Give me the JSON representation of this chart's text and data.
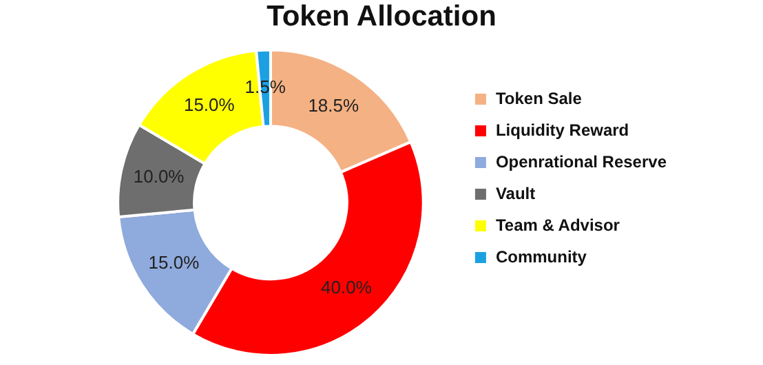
{
  "chart_data": {
    "type": "donut",
    "title": "Token Allocation",
    "categories": [
      "Token Sale",
      "Liquidity Reward",
      "Openrational Reserve",
      "Vault",
      "Team & Advisor",
      "Community"
    ],
    "values": [
      18.5,
      40.0,
      15.0,
      10.0,
      15.0,
      1.5
    ],
    "value_labels": [
      "18.5%",
      "40.0%",
      "15.0%",
      "10.0%",
      "15.0%",
      "1.5%"
    ],
    "colors": [
      "#f4b183",
      "#ff0000",
      "#8faadc",
      "#6e6e6e",
      "#ffff00",
      "#1ba1e2"
    ],
    "legend": "right"
  }
}
